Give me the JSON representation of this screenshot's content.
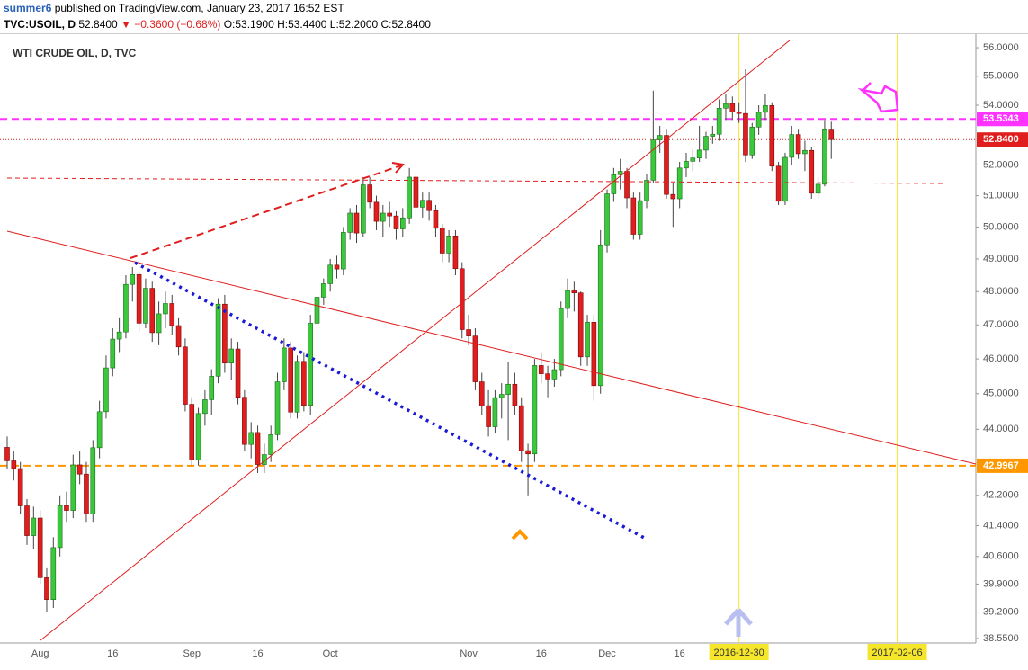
{
  "header": {
    "author": "summer6",
    "published": "published on TradingView.com, January 23, 2017 16:52 EST",
    "symbol": "TVC:USOIL, D",
    "last": "52.8400",
    "change": "▼ −0.3600 (−0.68%)",
    "ohlc": "O:53.1900 H:53.4400 L:52.2000 C:52.8400"
  },
  "chart_data": {
    "type": "candlestick",
    "title": "WTI CRUDE OIL, D, TVC",
    "log_scale": true,
    "up_color": "#3cc83c",
    "down_color": "#e01e1e",
    "ylim": [
      38.44,
      56.32
    ],
    "yticks": [
      {
        "value": 56,
        "label": "56.0000"
      },
      {
        "value": 55,
        "label": "55.0000"
      },
      {
        "value": 54,
        "label": "54.0000"
      },
      {
        "value": 52,
        "label": "52.0000"
      },
      {
        "value": 51,
        "label": "51.0000"
      },
      {
        "value": 50,
        "label": "50.0000"
      },
      {
        "value": 49,
        "label": "49.0000"
      },
      {
        "value": 48,
        "label": "48.0000"
      },
      {
        "value": 47,
        "label": "47.0000"
      },
      {
        "value": 46,
        "label": "46.0000"
      },
      {
        "value": 45,
        "label": "45.0000"
      },
      {
        "value": 44,
        "label": "44.0000"
      },
      {
        "value": 42.2,
        "label": "42.2000"
      },
      {
        "value": 41.4,
        "label": "41.4000"
      },
      {
        "value": 40.6,
        "label": "40.6000"
      },
      {
        "value": 39.9,
        "label": "39.9000"
      },
      {
        "value": 39.2,
        "label": "39.2000"
      },
      {
        "value": 38.55,
        "label": "38.5500"
      }
    ],
    "hlines": [
      {
        "value": 53.5343,
        "color": "#ff33ff"
      },
      {
        "value": 52.84,
        "label": "52.8400",
        "color": "#e01e1e"
      },
      {
        "value": 42.9967,
        "color": "#ff9800"
      }
    ],
    "date_markers": [
      "2016-12-30",
      "2017-02-06"
    ],
    "categories": [
      null,
      null,
      null,
      null,
      null,
      "Aug",
      null,
      null,
      null,
      null,
      null,
      null,
      null,
      null,
      null,
      null,
      "16",
      null,
      null,
      null,
      null,
      null,
      null,
      null,
      null,
      null,
      null,
      null,
      "Sep",
      null,
      null,
      null,
      null,
      null,
      null,
      null,
      null,
      null,
      "16",
      null,
      null,
      null,
      null,
      null,
      null,
      null,
      null,
      null,
      null,
      "Oct",
      null,
      null,
      null,
      null,
      null,
      null,
      null,
      null,
      null,
      null,
      null,
      null,
      null,
      null,
      null,
      null,
      null,
      null,
      null,
      null,
      "Nov",
      null,
      null,
      null,
      null,
      null,
      null,
      null,
      null,
      null,
      null,
      "16",
      null,
      null,
      null,
      null,
      null,
      null,
      null,
      null,
      null,
      "Dec",
      null,
      null,
      null,
      null,
      null,
      null,
      null,
      null,
      null,
      null,
      "16",
      null,
      null,
      null,
      null,
      null,
      null,
      null,
      null,
      null,
      null,
      null,
      null,
      null,
      null,
      null,
      null,
      null,
      null,
      null,
      null,
      null,
      null,
      null
    ],
    "open": [
      43.5,
      43.13,
      42.92,
      41.92,
      41.14,
      41.6,
      40.06,
      39.51,
      40.83,
      41.93,
      41.8,
      43.02,
      42.77,
      41.71,
      43.49,
      44.49,
      45.74,
      46.58,
      46.79,
      48.22,
      48.52,
      47.05,
      48.1,
      46.77,
      47.33,
      47.64,
      46.98,
      46.35,
      44.7,
      43.16,
      44.44,
      44.83,
      45.5,
      47.62,
      45.88,
      46.29,
      44.9,
      43.58,
      43.91,
      43.03,
      43.3,
      43.85,
      45.34,
      46.32,
      44.48,
      45.93,
      44.67,
      47.05,
      47.83,
      48.24,
      48.81,
      48.69,
      49.83,
      50.44,
      49.81,
      51.35,
      50.79,
      50.18,
      50.44,
      50.35,
      49.94,
      50.29,
      51.6,
      50.63,
      50.85,
      50.52,
      49.96,
      49.18,
      49.72,
      48.7,
      46.86,
      46.67,
      45.34,
      44.66,
      44.07,
      44.89,
      44.98,
      45.27,
      44.66,
      43.41,
      43.32,
      45.81,
      45.57,
      45.42,
      45.69,
      47.49,
      48.03,
      47.96,
      46.06,
      47.08,
      45.23,
      49.44,
      51.06,
      51.68,
      51.79,
      50.93,
      49.77,
      50.84,
      51.5,
      52.83,
      52.98,
      51.04,
      50.9,
      51.9,
      52.12,
      52.23,
      52.49,
      52.95,
      53.02,
      53.9,
      54.06,
      53.77,
      53.72,
      52.33,
      53.26,
      53.76,
      53.99,
      51.96,
      50.82,
      52.25,
      53.01,
      52.37,
      52.48,
      51.08,
      51.37,
      53.19
    ],
    "high": [
      43.8,
      43.4,
      43.1,
      42.1,
      41.9,
      41.8,
      40.3,
      41.1,
      42.2,
      42.3,
      43.3,
      43.4,
      43.1,
      43.7,
      44.8,
      46.1,
      46.9,
      47.2,
      48.5,
      48.75,
      48.6,
      48.4,
      48.3,
      47.7,
      48,
      47.9,
      47.2,
      46.6,
      44.9,
      44.6,
      45.1,
      45.7,
      47.8,
      47.9,
      46.6,
      46.5,
      45.1,
      44.2,
      44.1,
      43.6,
      44.1,
      45.6,
      46.6,
      46.5,
      46.1,
      46.2,
      47.3,
      48,
      48.4,
      49,
      49.1,
      50,
      50.6,
      50.7,
      51.6,
      51.6,
      51,
      50.7,
      50.8,
      50.5,
      50.6,
      51.9,
      51.7,
      51.1,
      51.1,
      50.7,
      50.1,
      49.9,
      49.9,
      48.9,
      47.3,
      46.9,
      45.6,
      45.1,
      45.1,
      45.3,
      45.9,
      45.6,
      44.9,
      43.6,
      46,
      46.2,
      45.8,
      46,
      47.7,
      48.4,
      48.3,
      48,
      47.3,
      47.3,
      49.9,
      51.2,
      51.9,
      52.2,
      51.9,
      51.1,
      51.1,
      51.7,
      54.5,
      53.3,
      53.2,
      51.4,
      52.1,
      52.4,
      52.5,
      53.3,
      53.1,
      53.3,
      54.2,
      54.4,
      54.3,
      54.1,
      55.24,
      53.4,
      54,
      54.4,
      54.1,
      52.1,
      52.4,
      53.3,
      53.2,
      52.8,
      52.6,
      51.6,
      53.5,
      53.44
    ],
    "low": [
      42.9,
      42.6,
      41.7,
      40.9,
      40.8,
      39.9,
      39.19,
      39.3,
      40.6,
      41.5,
      41.6,
      42.5,
      41.5,
      41.5,
      43.2,
      44.3,
      45.5,
      46.2,
      46.6,
      47.7,
      46.8,
      46.9,
      46.5,
      46.4,
      46.9,
      46.7,
      46.1,
      44.5,
      43,
      43,
      44.1,
      44.4,
      45.3,
      45.6,
      45.4,
      44.7,
      43.4,
      43.2,
      42.8,
      42.8,
      43.1,
      43.7,
      45.1,
      44.3,
      44.3,
      44.5,
      44.4,
      46.8,
      47.6,
      48,
      48.4,
      48.5,
      49.6,
      49.5,
      49.7,
      50.6,
      49.9,
      49.7,
      50,
      49.6,
      49.7,
      50.1,
      50.4,
      50.3,
      50.2,
      49.7,
      48.9,
      48.9,
      48.5,
      46.6,
      46.4,
      45.1,
      44.4,
      43.8,
      43.9,
      44.3,
      43.7,
      44.4,
      43.1,
      42.2,
      43.1,
      45.3,
      44.9,
      45.2,
      45.5,
      47.2,
      47.4,
      45.8,
      45.8,
      44.8,
      45,
      49.2,
      50.8,
      51.2,
      50.6,
      49.6,
      49.6,
      50.6,
      51.4,
      52.4,
      50.9,
      50,
      50.6,
      51.6,
      51.8,
      52.1,
      52.2,
      52.7,
      52.8,
      53.5,
      53.5,
      53.4,
      52.1,
      52.2,
      53,
      53.5,
      51.8,
      50.7,
      50.7,
      52,
      52.2,
      51.8,
      50.9,
      50.9,
      51.3,
      52.2
    ],
    "close": [
      43.13,
      42.92,
      41.92,
      41.14,
      41.6,
      40.06,
      39.51,
      40.83,
      41.93,
      41.8,
      43.02,
      42.77,
      41.71,
      43.49,
      44.49,
      45.74,
      46.58,
      46.79,
      48.22,
      48.52,
      47.05,
      48.1,
      46.77,
      47.33,
      47.64,
      46.98,
      46.35,
      44.7,
      43.16,
      44.44,
      44.83,
      45.5,
      47.62,
      45.88,
      46.29,
      44.9,
      43.58,
      43.91,
      43.03,
      43.3,
      43.85,
      45.34,
      46.32,
      44.48,
      45.93,
      44.67,
      47.05,
      47.83,
      48.24,
      48.81,
      48.69,
      49.83,
      50.44,
      49.81,
      51.35,
      50.79,
      50.18,
      50.44,
      50.35,
      49.94,
      50.29,
      51.6,
      50.63,
      50.85,
      50.52,
      49.96,
      49.18,
      49.72,
      48.7,
      46.86,
      46.67,
      45.34,
      44.66,
      44.07,
      44.89,
      44.98,
      45.27,
      44.66,
      43.41,
      43.32,
      45.81,
      45.57,
      45.42,
      45.69,
      47.49,
      48.03,
      47.96,
      46.06,
      47.08,
      45.23,
      49.44,
      51.06,
      51.68,
      51.79,
      50.93,
      49.77,
      50.84,
      51.5,
      52.83,
      52.98,
      51.04,
      50.9,
      51.9,
      52.12,
      52.23,
      52.49,
      52.95,
      53.02,
      53.9,
      54.06,
      53.77,
      53.72,
      52.33,
      53.26,
      53.76,
      53.99,
      51.96,
      50.82,
      52.25,
      53.01,
      52.37,
      52.48,
      51.08,
      51.37,
      53.2,
      52.84
    ]
  }
}
